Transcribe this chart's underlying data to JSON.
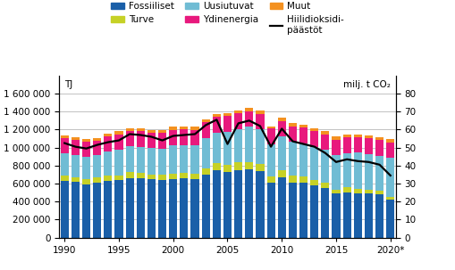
{
  "years": [
    1990,
    1991,
    1992,
    1993,
    1994,
    1995,
    1996,
    1997,
    1998,
    1999,
    2000,
    2001,
    2002,
    2003,
    2004,
    2005,
    2006,
    2007,
    2008,
    2009,
    2010,
    2011,
    2012,
    2013,
    2014,
    2015,
    2016,
    2017,
    2018,
    2019,
    2020
  ],
  "fossiiliset": [
    635000,
    620000,
    595000,
    608000,
    630000,
    637000,
    658000,
    655000,
    645000,
    638000,
    648000,
    655000,
    648000,
    695000,
    745000,
    725000,
    748000,
    755000,
    735000,
    615000,
    665000,
    615000,
    608000,
    585000,
    555000,
    487000,
    505000,
    488000,
    487000,
    477000,
    418000
  ],
  "turve": [
    52000,
    46000,
    52000,
    57000,
    62000,
    57000,
    72000,
    62000,
    57000,
    57000,
    62000,
    67000,
    62000,
    77000,
    82000,
    82000,
    93000,
    87000,
    87000,
    67000,
    82000,
    77000,
    67000,
    57000,
    52000,
    47000,
    52000,
    52000,
    47000,
    42000,
    37000
  ],
  "uusiutuvat": [
    250000,
    248000,
    248000,
    248000,
    262000,
    282000,
    282000,
    292000,
    292000,
    295000,
    315000,
    308000,
    315000,
    338000,
    342000,
    368000,
    368000,
    392000,
    382000,
    355000,
    378000,
    372000,
    372000,
    368000,
    368000,
    382000,
    382000,
    402000,
    398000,
    393000,
    432000
  ],
  "ydinenergia": [
    168000,
    168000,
    173000,
    163000,
    173000,
    173000,
    173000,
    173000,
    173000,
    173000,
    173000,
    173000,
    173000,
    173000,
    173000,
    173000,
    173000,
    173000,
    173000,
    173000,
    173000,
    173000,
    173000,
    173000,
    173000,
    173000,
    173000,
    173000,
    173000,
    173000,
    173000
  ],
  "muut": [
    32000,
    32000,
    32000,
    32000,
    32000,
    32000,
    32000,
    32000,
    32000,
    32000,
    32000,
    32000,
    32000,
    32000,
    32000,
    32000,
    32000,
    32000,
    32000,
    28000,
    32000,
    32000,
    32000,
    32000,
    32000,
    32000,
    32000,
    32000,
    32000,
    32000,
    32000
  ],
  "co2": [
    52.5,
    50.5,
    49.5,
    51.5,
    53.0,
    54.0,
    57.5,
    57.0,
    56.0,
    54.0,
    56.5,
    57.0,
    57.5,
    62.5,
    65.5,
    52.0,
    63.5,
    65.0,
    62.0,
    50.5,
    60.5,
    53.5,
    52.0,
    50.5,
    47.0,
    42.0,
    43.5,
    42.5,
    42.0,
    40.5,
    34.5
  ],
  "colors": {
    "fossiiliset": "#1a5fa8",
    "turve": "#c6d126",
    "uusiutuvat": "#70bcd4",
    "ydinenergia": "#e8197d",
    "muut": "#f49120"
  },
  "ylim_left": [
    0,
    1800000
  ],
  "ylim_right": [
    0,
    90
  ],
  "yticks_left": [
    0,
    200000,
    400000,
    600000,
    800000,
    1000000,
    1200000,
    1400000,
    1600000
  ],
  "yticks_right": [
    0,
    10,
    20,
    30,
    40,
    50,
    60,
    70,
    80
  ],
  "ylabel_left": "TJ",
  "ylabel_right": "milj. t CO₂",
  "xtick_positions": [
    0,
    5,
    10,
    15,
    20,
    25,
    30
  ],
  "xtick_labels": [
    "1990",
    "1995",
    "2000",
    "2005",
    "2010",
    "2015",
    "2020*"
  ]
}
